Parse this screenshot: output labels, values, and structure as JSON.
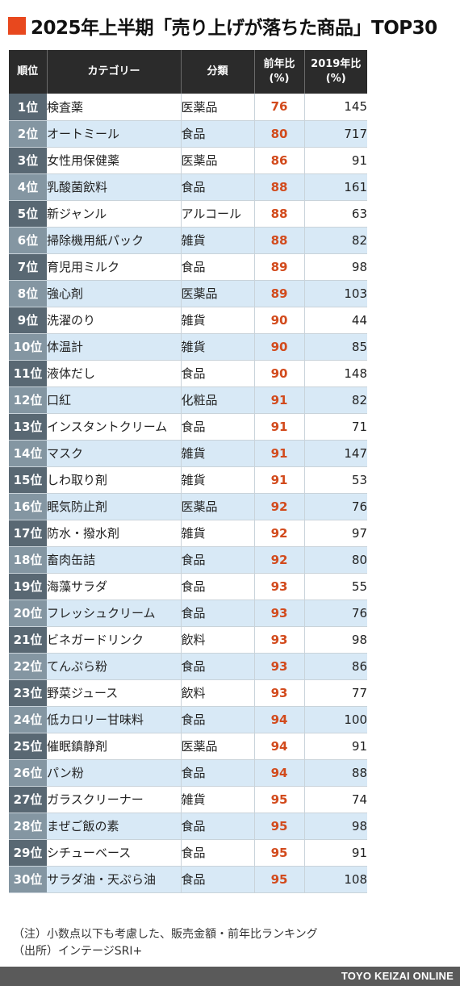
{
  "title": "2025年上半期「売り上げが落ちた商品」TOP30",
  "headers": {
    "rank": "順位",
    "category": "カテゴリー",
    "classification": "分類",
    "yoy_line1": "前年比",
    "yoy_line2": "(%)",
    "vs2019_line1": "2019年比",
    "vs2019_line2": "(%)"
  },
  "rows": [
    {
      "rank": "1位",
      "category": "検査薬",
      "classification": "医薬品",
      "yoy": "76",
      "vs2019": "145"
    },
    {
      "rank": "2位",
      "category": "オートミール",
      "classification": "食品",
      "yoy": "80",
      "vs2019": "717"
    },
    {
      "rank": "3位",
      "category": "女性用保健薬",
      "classification": "医薬品",
      "yoy": "86",
      "vs2019": "91"
    },
    {
      "rank": "4位",
      "category": "乳酸菌飲料",
      "classification": "食品",
      "yoy": "88",
      "vs2019": "161"
    },
    {
      "rank": "5位",
      "category": "新ジャンル",
      "classification": "アルコール",
      "yoy": "88",
      "vs2019": "63"
    },
    {
      "rank": "6位",
      "category": "掃除機用紙パック",
      "classification": "雑貨",
      "yoy": "88",
      "vs2019": "82"
    },
    {
      "rank": "7位",
      "category": "育児用ミルク",
      "classification": "食品",
      "yoy": "89",
      "vs2019": "98"
    },
    {
      "rank": "8位",
      "category": "強心剤",
      "classification": "医薬品",
      "yoy": "89",
      "vs2019": "103"
    },
    {
      "rank": "9位",
      "category": "洗濯のり",
      "classification": "雑貨",
      "yoy": "90",
      "vs2019": "44"
    },
    {
      "rank": "10位",
      "category": "体温計",
      "classification": "雑貨",
      "yoy": "90",
      "vs2019": "85"
    },
    {
      "rank": "11位",
      "category": "液体だし",
      "classification": "食品",
      "yoy": "90",
      "vs2019": "148"
    },
    {
      "rank": "12位",
      "category": "口紅",
      "classification": "化粧品",
      "yoy": "91",
      "vs2019": "82"
    },
    {
      "rank": "13位",
      "category": "インスタントクリーム",
      "classification": "食品",
      "yoy": "91",
      "vs2019": "71"
    },
    {
      "rank": "14位",
      "category": "マスク",
      "classification": "雑貨",
      "yoy": "91",
      "vs2019": "147"
    },
    {
      "rank": "15位",
      "category": "しわ取り剤",
      "classification": "雑貨",
      "yoy": "91",
      "vs2019": "53"
    },
    {
      "rank": "16位",
      "category": "眠気防止剤",
      "classification": "医薬品",
      "yoy": "92",
      "vs2019": "76"
    },
    {
      "rank": "17位",
      "category": "防水・撥水剤",
      "classification": "雑貨",
      "yoy": "92",
      "vs2019": "97"
    },
    {
      "rank": "18位",
      "category": "畜肉缶詰",
      "classification": "食品",
      "yoy": "92",
      "vs2019": "80"
    },
    {
      "rank": "19位",
      "category": "海藻サラダ",
      "classification": "食品",
      "yoy": "93",
      "vs2019": "55"
    },
    {
      "rank": "20位",
      "category": "フレッシュクリーム",
      "classification": "食品",
      "yoy": "93",
      "vs2019": "76"
    },
    {
      "rank": "21位",
      "category": "ビネガードリンク",
      "classification": "飲料",
      "yoy": "93",
      "vs2019": "98"
    },
    {
      "rank": "22位",
      "category": "てんぷら粉",
      "classification": "食品",
      "yoy": "93",
      "vs2019": "86"
    },
    {
      "rank": "23位",
      "category": "野菜ジュース",
      "classification": "飲料",
      "yoy": "93",
      "vs2019": "77"
    },
    {
      "rank": "24位",
      "category": "低カロリー甘味料",
      "classification": "食品",
      "yoy": "94",
      "vs2019": "100"
    },
    {
      "rank": "25位",
      "category": "催眠鎮静剤",
      "classification": "医薬品",
      "yoy": "94",
      "vs2019": "91"
    },
    {
      "rank": "26位",
      "category": "パン粉",
      "classification": "食品",
      "yoy": "94",
      "vs2019": "88"
    },
    {
      "rank": "27位",
      "category": "ガラスクリーナー",
      "classification": "雑貨",
      "yoy": "95",
      "vs2019": "74"
    },
    {
      "rank": "28位",
      "category": "まぜご飯の素",
      "classification": "食品",
      "yoy": "95",
      "vs2019": "98"
    },
    {
      "rank": "29位",
      "category": "シチューベース",
      "classification": "食品",
      "yoy": "95",
      "vs2019": "91"
    },
    {
      "rank": "30位",
      "category": "サラダ油・天ぷら油",
      "classification": "食品",
      "yoy": "95",
      "vs2019": "108"
    }
  ],
  "notes": {
    "note": "（注）小数点以下も考慮した、販売金額・前年比ランキング",
    "source": "（出所）インテージSRI+"
  },
  "footer": {
    "brand": "TOYO KEIZAI ONLINE"
  },
  "colors": {
    "title_accent": "#e8481e",
    "header_bg": "#2b2b2b",
    "rank_cell_bg": "#596873",
    "row_alt_bg": "#d8e9f6",
    "yoy_text": "#d24a1c",
    "footer_bg": "#5a5a5a"
  }
}
